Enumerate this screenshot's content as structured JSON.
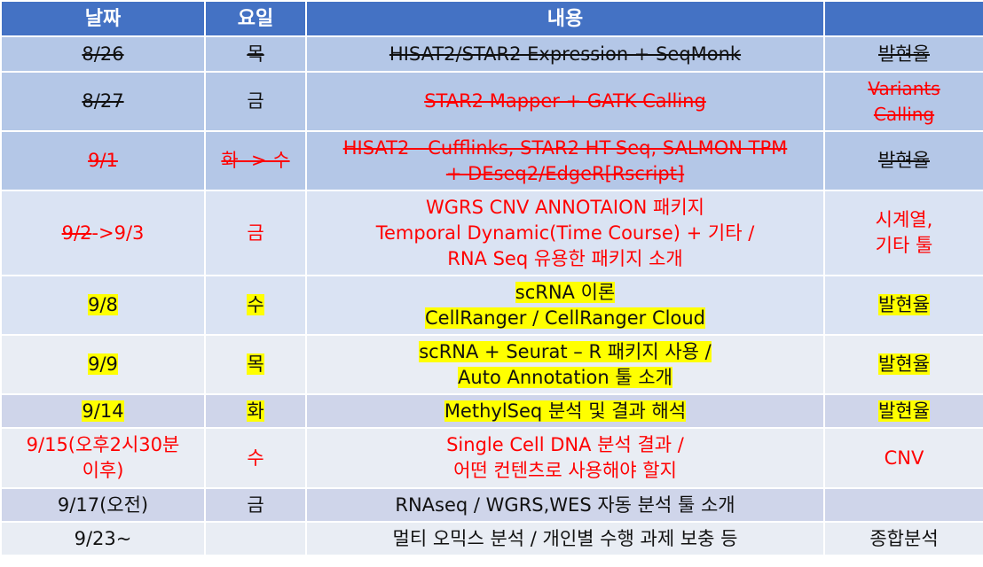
{
  "header": {
    "date": "날짜",
    "day": "요일",
    "content": "내용",
    "extra": ""
  },
  "rows": [
    {
      "date": "8/26",
      "day": "목",
      "content": [
        "HISAT2/STAR2 Expression  +  SeqMonk"
      ],
      "extra": [
        "발현율"
      ]
    },
    {
      "date": "8/27",
      "day": "금",
      "content": [
        "STAR2 Mapper +   GATK Calling"
      ],
      "extra": [
        "Variants",
        "Calling"
      ]
    },
    {
      "date": "9/1",
      "day": "화 -> 수",
      "content": [
        "HISAT2 - Cufflinks, STAR2 HT-Seq, SALMON TPM",
        "+ DEseq2/EdgeR[Rscript]"
      ],
      "extra": [
        "발현율"
      ]
    },
    {
      "date_struck": "9/2",
      "date_rest": "->9/3",
      "day": "금",
      "content": [
        "WGRS CNV ANNOTAION 패키지",
        "Temporal Dynamic(Time Course) + 기타 /",
        "RNA Seq 유용한 패키지 소개"
      ],
      "extra": [
        "시계열,",
        "기타 툴"
      ]
    },
    {
      "date": "9/8",
      "day": "수",
      "content": [
        "scRNA 이론",
        "CellRanger / CellRanger Cloud"
      ],
      "extra": [
        "발현율"
      ]
    },
    {
      "date": "9/9",
      "day": "목",
      "content": [
        "scRNA + Seurat – R 패키지 사용 /",
        "Auto Annotation 툴 소개"
      ],
      "extra": [
        "발현율"
      ]
    },
    {
      "date": "9/14",
      "day": "화",
      "content": [
        "MethylSeq 분석 및 결과 해석"
      ],
      "extra": [
        "발현율"
      ]
    },
    {
      "date": [
        "9/15(오후2시30분",
        "이후)"
      ],
      "day": "수",
      "content": [
        "Single Cell DNA 분석 결과 /",
        "어떤 컨텐츠로 사용해야 할지"
      ],
      "extra": [
        "CNV"
      ]
    },
    {
      "date": "9/17(오전)",
      "day": "금",
      "content": [
        "RNAseq / WGRS,WES 자동 분석 툴 소개"
      ],
      "extra": []
    },
    {
      "date": "9/23~",
      "day": "",
      "content": [
        "멀티 오믹스 분석 / 개인별 수행 과제 보충 등"
      ],
      "extra": [
        "종합분석"
      ]
    }
  ],
  "colors": {
    "header_bg": "#4472c4",
    "row_dark": "#b4c7e7",
    "row_light": "#dae3f3",
    "highlight": "#ffff00",
    "red_text": "#ff0000"
  }
}
